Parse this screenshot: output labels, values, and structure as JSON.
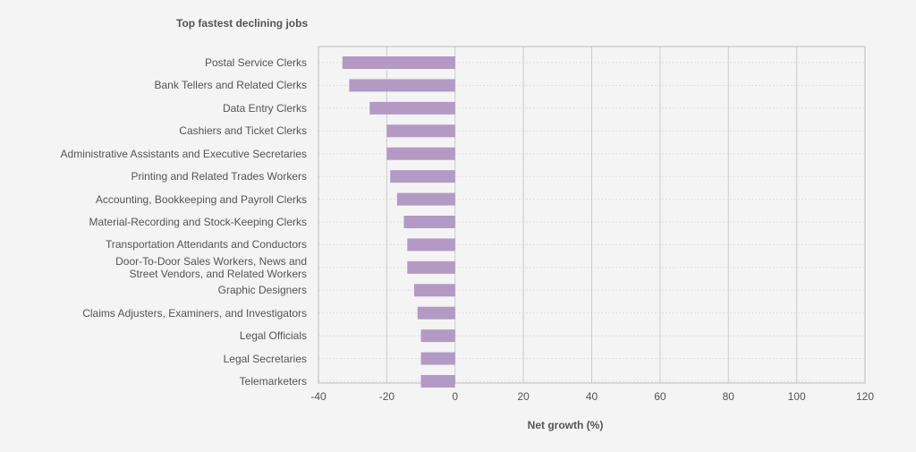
{
  "chart_data": {
    "type": "barh",
    "title": "Top fastest declining jobs",
    "x_label": "Net growth (%)",
    "categories": [
      "Postal Service Clerks",
      "Bank Tellers and Related Clerks",
      "Data Entry Clerks",
      "Cashiers and Ticket Clerks",
      "Administrative Assistants and Executive Secretaries",
      "Printing and Related Trades Workers",
      "Accounting, Bookkeeping and Payroll Clerks",
      "Material-Recording and Stock-Keeping Clerks",
      "Transportation Attendants and Conductors",
      "Door-To-Door Sales Workers, News and\nStreet Vendors, and Related Workers",
      "Graphic Designers",
      "Claims Adjusters, Examiners, and Investigators",
      "Legal Officials",
      "Legal Secretaries",
      "Telemarketers"
    ],
    "values": [
      -33,
      -31,
      -25,
      -20,
      -20,
      -19,
      -17,
      -15,
      -14,
      -14,
      -12,
      -11,
      -10,
      -10,
      -10
    ],
    "color": "#b39ac4",
    "xlim": [
      -40,
      120
    ],
    "xticks": [
      -40,
      -20,
      0,
      20,
      40,
      60,
      80,
      100,
      120
    ],
    "grid": true
  }
}
